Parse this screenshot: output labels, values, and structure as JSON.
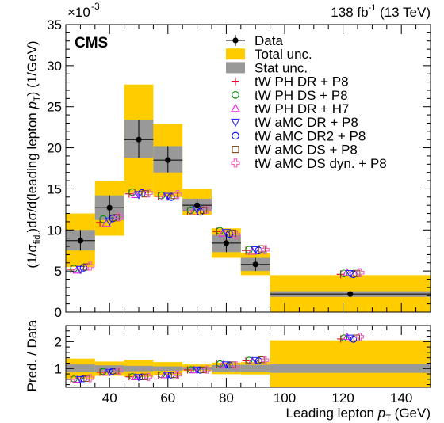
{
  "header": {
    "cms_label": "CMS",
    "lumi": "138 fb",
    "lumi_exp": "-1",
    "energy": " (13 TeV)",
    "yscale_base": "×10",
    "yscale_exp": "-3"
  },
  "colors": {
    "total_unc": "#ffcc00",
    "stat_unc": "#999999",
    "data": "#000000"
  },
  "chart_data": [
    {
      "type": "bar",
      "panel": "main",
      "title": "",
      "xlabel": "",
      "ylabel_parts": {
        "pre": "(1/σ",
        "sub": "fid.",
        "mid": ")dσ/d(leading lepton ",
        "p": "p",
        "psub": "T",
        "post": ") (1/GeV)"
      },
      "ylim": [
        0,
        35
      ],
      "y_scale_factor": 0.001,
      "xlim": [
        25,
        150
      ],
      "yticks": [
        0,
        5,
        10,
        15,
        20,
        25,
        30,
        35
      ],
      "bin_edges": [
        25,
        35,
        45,
        55,
        65,
        75,
        85,
        95,
        150
      ],
      "data": {
        "name": "Data",
        "values": [
          8.7,
          12.7,
          21.0,
          18.5,
          13.0,
          8.4,
          5.8,
          2.2
        ]
      },
      "total_unc": {
        "name": "Total unc.",
        "low": [
          5.5,
          9.3,
          14.5,
          14.0,
          11.8,
          6.6,
          4.5,
          0.0
        ],
        "high": [
          12.0,
          16.0,
          27.7,
          22.9,
          15.0,
          10.2,
          7.2,
          4.5
        ]
      },
      "stat_unc": {
        "name": "Stat unc.",
        "low": [
          7.5,
          11.2,
          18.8,
          17.0,
          12.3,
          7.3,
          5.0,
          1.85
        ],
        "high": [
          10.0,
          14.2,
          23.4,
          20.2,
          13.8,
          9.4,
          6.6,
          2.55
        ]
      },
      "predictions": [
        {
          "name": "tW PH DR + P8",
          "marker": "plus",
          "color": "#e4002b",
          "values": [
            5.2,
            10.9,
            14.4,
            14.1,
            12.3,
            9.8,
            7.5,
            4.6
          ]
        },
        {
          "name": "tW PH DS + P8",
          "marker": "circle",
          "color": "#008c00",
          "values": [
            5.3,
            11.3,
            14.6,
            14.2,
            12.4,
            9.9,
            7.6,
            4.7
          ]
        },
        {
          "name": "tW PH DR + H7",
          "marker": "triangle-up",
          "color": "#e020e0",
          "values": [
            5.1,
            10.8,
            14.3,
            14.0,
            12.2,
            9.6,
            7.4,
            4.8
          ]
        },
        {
          "name": "tW aMC DR + P8",
          "marker": "triangle-down",
          "color": "#2b2bff",
          "values": [
            5.2,
            11.1,
            14.3,
            14.1,
            12.5,
            9.7,
            7.6,
            4.7
          ]
        },
        {
          "name": "tW aMC DR2 + P8",
          "marker": "circle",
          "color": "#0000ff",
          "values": [
            5.4,
            11.4,
            14.5,
            14.0,
            12.2,
            9.5,
            7.5,
            4.6
          ]
        },
        {
          "name": "tW aMC DS + P8",
          "marker": "square",
          "color": "#7a4a14",
          "values": [
            5.5,
            11.5,
            14.4,
            14.2,
            12.4,
            9.6,
            7.7,
            4.7
          ]
        },
        {
          "name": "tW aMC DS dyn. + P8",
          "marker": "plus-open",
          "color": "#f060c0",
          "values": [
            5.6,
            11.6,
            14.5,
            14.3,
            12.5,
            9.4,
            7.6,
            4.8
          ]
        }
      ]
    },
    {
      "type": "bar",
      "panel": "ratio",
      "title": "",
      "ylabel": "Pred. / Data",
      "xlabel_parts": {
        "pre": "Leading lepton ",
        "p": "p",
        "psub": "T",
        "post": " (GeV)"
      },
      "ylim": [
        0.3,
        2.6
      ],
      "yticks": [
        1,
        2
      ],
      "xticks": [
        40,
        60,
        80,
        100,
        120,
        140
      ],
      "stat_rel": {
        "low": [
          0.86,
          0.88,
          0.9,
          0.92,
          0.95,
          0.87,
          0.86,
          0.84
        ],
        "high": [
          1.15,
          1.12,
          1.1,
          1.08,
          1.06,
          1.13,
          1.14,
          1.16
        ]
      },
      "total_rel": {
        "low": [
          0.63,
          0.73,
          0.69,
          0.76,
          0.91,
          0.79,
          0.78,
          0.0
        ],
        "high": [
          1.37,
          1.26,
          1.32,
          1.24,
          1.15,
          1.22,
          1.24,
          2.05
        ]
      },
      "pred_ratios": [
        [
          0.6,
          0.86,
          0.69,
          0.76,
          0.95,
          1.17,
          1.29,
          2.1
        ],
        [
          0.61,
          0.89,
          0.7,
          0.77,
          0.96,
          1.18,
          1.31,
          2.14
        ],
        [
          0.59,
          0.85,
          0.68,
          0.76,
          0.94,
          1.14,
          1.28,
          2.18
        ],
        [
          0.6,
          0.87,
          0.68,
          0.76,
          0.96,
          1.15,
          1.31,
          2.14
        ],
        [
          0.62,
          0.9,
          0.69,
          0.76,
          0.94,
          1.13,
          1.29,
          2.09
        ],
        [
          0.63,
          0.91,
          0.69,
          0.77,
          0.95,
          1.14,
          1.33,
          2.14
        ],
        [
          0.64,
          0.91,
          0.69,
          0.77,
          0.96,
          1.12,
          1.31,
          2.18
        ]
      ]
    }
  ]
}
